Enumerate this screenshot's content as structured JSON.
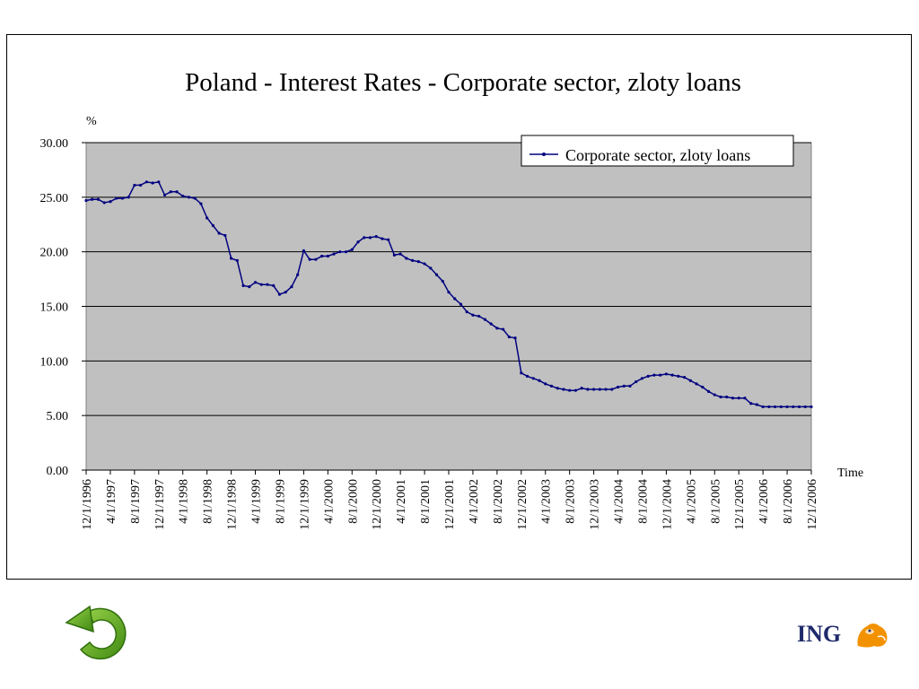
{
  "chart_data": {
    "type": "line",
    "title": "Poland - Interest Rates - Corporate sector, zloty loans",
    "ylabel": "%",
    "xlabel": "Time",
    "ylim": [
      0,
      30
    ],
    "y_ticks": [
      "30.00",
      "25.00",
      "20.00",
      "15.00",
      "10.00",
      "5.00",
      "0.00"
    ],
    "x_tick_labels": [
      "12/1/1996",
      "4/1/1997",
      "8/1/1997",
      "12/1/1997",
      "4/1/1998",
      "8/1/1998",
      "12/1/1998",
      "4/1/1999",
      "8/1/1999",
      "12/1/1999",
      "4/1/2000",
      "8/1/2000",
      "12/1/2000",
      "4/1/2001",
      "8/1/2001",
      "12/1/2001",
      "4/1/2002",
      "8/1/2002",
      "12/1/2002",
      "4/1/2003",
      "8/1/2003",
      "12/1/2003",
      "4/1/2004",
      "8/1/2004",
      "12/1/2004",
      "4/1/2005",
      "8/1/2005",
      "12/1/2005",
      "4/1/2006",
      "8/1/2006",
      "12/1/2006"
    ],
    "x_start": "12/1/1996",
    "x_end": "12/1/2006",
    "x_step": "1 month",
    "grid": true,
    "legend_position": "top-right",
    "plot_background": "#c0c0c0",
    "series": [
      {
        "name": "Corporate sector, zloty loans",
        "color": "#000080",
        "values": [
          24.7,
          24.8,
          24.8,
          24.5,
          24.6,
          24.9,
          24.9,
          25.0,
          26.1,
          26.1,
          26.4,
          26.3,
          26.4,
          25.2,
          25.5,
          25.5,
          25.1,
          25.0,
          24.9,
          24.4,
          23.1,
          22.4,
          21.7,
          21.5,
          19.4,
          19.2,
          16.9,
          16.8,
          17.2,
          17.0,
          17.0,
          16.9,
          16.1,
          16.3,
          16.8,
          17.9,
          20.1,
          19.3,
          19.3,
          19.6,
          19.6,
          19.8,
          20.0,
          20.0,
          20.2,
          20.9,
          21.3,
          21.3,
          21.4,
          21.2,
          21.1,
          19.7,
          19.8,
          19.4,
          19.2,
          19.1,
          18.9,
          18.5,
          17.9,
          17.3,
          16.3,
          15.7,
          15.2,
          14.5,
          14.2,
          14.1,
          13.8,
          13.4,
          13.0,
          12.9,
          12.2,
          12.1,
          8.9,
          8.6,
          8.4,
          8.2,
          7.9,
          7.7,
          7.5,
          7.4,
          7.3,
          7.3,
          7.5,
          7.4,
          7.4,
          7.4,
          7.4,
          7.4,
          7.6,
          7.7,
          7.7,
          8.1,
          8.4,
          8.6,
          8.7,
          8.7,
          8.8,
          8.7,
          8.6,
          8.5,
          8.2,
          7.9,
          7.6,
          7.2,
          6.9,
          6.7,
          6.7,
          6.6,
          6.6,
          6.6,
          6.1,
          6.0,
          5.8,
          5.8,
          5.8,
          5.8,
          5.8,
          5.8,
          5.8,
          5.8,
          5.8
        ]
      }
    ]
  },
  "branding": {
    "logo_text": "ING",
    "logo_color": "#1f2a6b",
    "lion_color": "#f39200",
    "lion_icon": "lion-icon"
  },
  "navigation": {
    "back_icon": "return-arrow-icon",
    "back_color": "#5aa51e"
  }
}
